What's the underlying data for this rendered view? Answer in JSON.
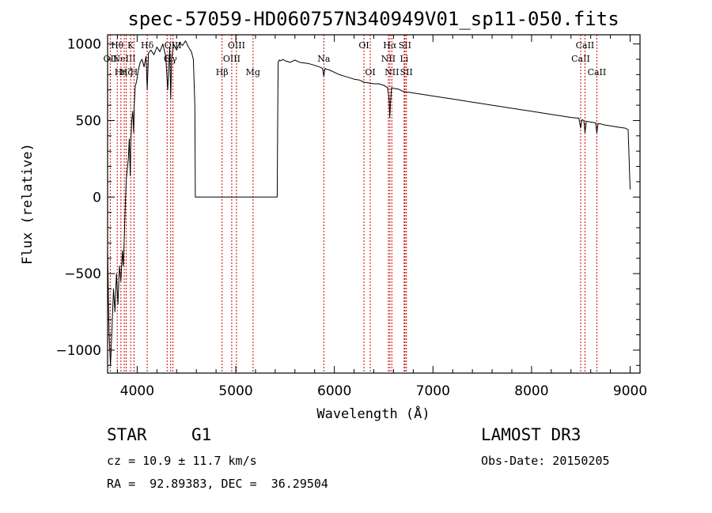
{
  "chart_data": {
    "type": "line",
    "title": "spec-57059-HD060757N340949V01_sp11-050.fits",
    "xlabel": "Wavelength (Å)",
    "ylabel": "Flux (relative)",
    "xlim": [
      3700,
      9100
    ],
    "ylim": [
      -1150,
      1060
    ],
    "xticks": [
      4000,
      5000,
      6000,
      7000,
      8000,
      9000
    ],
    "xtick_labels": [
      "4000",
      "5000",
      "6000",
      "7000",
      "8000",
      "9000"
    ],
    "yticks": [
      -1000,
      -500,
      0,
      500,
      1000
    ],
    "ytick_labels": [
      "−1000",
      "−500",
      "0",
      "500",
      "1000"
    ],
    "series": [
      {
        "name": "flux",
        "x": [
          3700,
          3715,
          3730,
          3745,
          3760,
          3775,
          3790,
          3805,
          3820,
          3835,
          3850,
          3860,
          3870,
          3880,
          3890,
          3900,
          3910,
          3920,
          3930,
          3935,
          3945,
          3955,
          3965,
          3970,
          3980,
          3995,
          4010,
          4030,
          4050,
          4070,
          4090,
          4102,
          4115,
          4140,
          4170,
          4200,
          4230,
          4260,
          4290,
          4310,
          4330,
          4340,
          4350,
          4370,
          4400,
          4430,
          4460,
          4490,
          4520,
          4550,
          4570,
          4585,
          4590,
          4600,
          5000,
          5420,
          5425,
          5430,
          5440,
          5460,
          5480,
          5500,
          5550,
          5600,
          5650,
          5700,
          5750,
          5800,
          5850,
          5880,
          5893,
          5905,
          5920,
          5950,
          6000,
          6050,
          6100,
          6150,
          6200,
          6250,
          6300,
          6350,
          6400,
          6450,
          6500,
          6540,
          6555,
          6562,
          6570,
          6580,
          6600,
          6650,
          6700,
          6750,
          6800,
          6900,
          7000,
          7100,
          7200,
          7300,
          7400,
          7500,
          7600,
          7700,
          7800,
          7900,
          8000,
          8100,
          8200,
          8300,
          8400,
          8480,
          8498,
          8510,
          8530,
          8542,
          8555,
          8600,
          8650,
          8662,
          8675,
          8700,
          8750,
          8800,
          8850,
          8900,
          8950,
          8980,
          9000
        ],
        "y": [
          -350,
          -900,
          -1100,
          -850,
          -600,
          -750,
          -500,
          -700,
          -450,
          -550,
          -350,
          -450,
          -250,
          -50,
          120,
          180,
          250,
          380,
          140,
          350,
          500,
          560,
          420,
          600,
          720,
          760,
          820,
          880,
          900,
          850,
          920,
          700,
          940,
          960,
          930,
          980,
          950,
          1000,
          920,
          700,
          980,
          640,
          900,
          1000,
          960,
          1010,
          990,
          1020,
          980,
          950,
          900,
          600,
          0,
          0,
          0,
          0,
          500,
          880,
          895,
          890,
          900,
          890,
          880,
          895,
          880,
          875,
          870,
          860,
          850,
          840,
          790,
          840,
          835,
          830,
          815,
          800,
          790,
          780,
          770,
          765,
          750,
          745,
          740,
          740,
          730,
          715,
          640,
          520,
          620,
          715,
          710,
          705,
          690,
          685,
          680,
          670,
          660,
          650,
          640,
          630,
          620,
          610,
          600,
          590,
          580,
          570,
          560,
          550,
          540,
          530,
          520,
          515,
          450,
          505,
          500,
          420,
          495,
          490,
          485,
          420,
          480,
          478,
          470,
          465,
          460,
          455,
          450,
          440,
          50
        ]
      }
    ],
    "line_markers": [
      {
        "wavelength": 3727,
        "label": "OII",
        "row": 2
      },
      {
        "wavelength": 3798,
        "label": "Hθ",
        "row": 1
      },
      {
        "wavelength": 3835,
        "label": "Hη",
        "row": 3
      },
      {
        "wavelength": 3869,
        "label": "NeIII",
        "row": 2
      },
      {
        "wavelength": 3889,
        "label": "Hζ",
        "row": 3
      },
      {
        "wavelength": 3934,
        "label": "K",
        "row": 1
      },
      {
        "wavelength": 3968,
        "label": "H",
        "row": 3
      },
      {
        "wavelength": 4102,
        "label": "Hδ",
        "row": 1
      },
      {
        "wavelength": 4304,
        "label": "G",
        "row": 2
      },
      {
        "wavelength": 4340,
        "label": "Hγ",
        "row": 2
      },
      {
        "wavelength": 4363,
        "label": "OIII",
        "row": 1
      },
      {
        "wavelength": 4861,
        "label": "Hβ",
        "row": 3
      },
      {
        "wavelength": 4959,
        "label": "OIII",
        "row": 2
      },
      {
        "wavelength": 5007,
        "label": "OIII",
        "row": 1
      },
      {
        "wavelength": 5175,
        "label": "Mg",
        "row": 3
      },
      {
        "wavelength": 5893,
        "label": "Na",
        "row": 2
      },
      {
        "wavelength": 6300,
        "label": "OI",
        "row": 1
      },
      {
        "wavelength": 6364,
        "label": "OI",
        "row": 3
      },
      {
        "wavelength": 6548,
        "label": "NII",
        "row": 2
      },
      {
        "wavelength": 6563,
        "label": "Hα",
        "row": 1
      },
      {
        "wavelength": 6583,
        "label": "NII",
        "row": 3
      },
      {
        "wavelength": 6708,
        "label": "Li",
        "row": 2
      },
      {
        "wavelength": 6716,
        "label": "SII",
        "row": 1
      },
      {
        "wavelength": 6731,
        "label": "SII",
        "row": 3
      },
      {
        "wavelength": 8498,
        "label": "CaII",
        "row": 2
      },
      {
        "wavelength": 8542,
        "label": "CaII",
        "row": 1
      },
      {
        "wavelength": 8662,
        "label": "CaII",
        "row": 3
      }
    ]
  },
  "footer": {
    "object_class": "STAR",
    "subclass": "G1",
    "redshift": "cz = 10.9 ± 11.7 km/s",
    "coords": "RA =  92.89383, DEC =  36.29504",
    "survey": "LAMOST DR3",
    "obs_date": "Obs-Date: 20150205"
  },
  "colors": {
    "line": "#000000",
    "marker": "#cc0000",
    "background": "#ffffff"
  }
}
